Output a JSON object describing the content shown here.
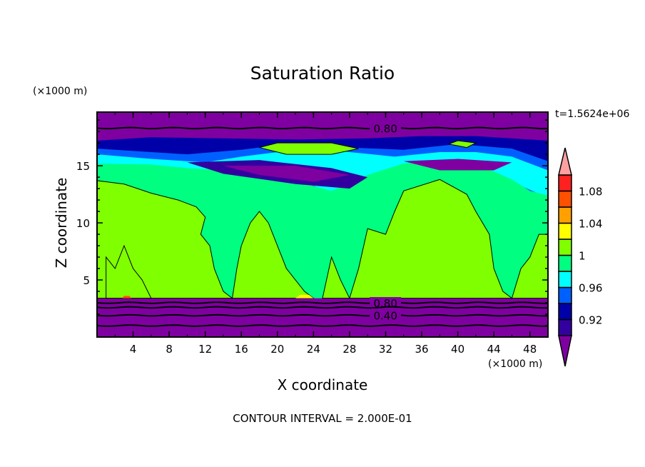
{
  "chart_data": {
    "type": "heatmap",
    "subtype": "filled-contour",
    "title": "Saturation Ratio",
    "xlabel": "X coordinate",
    "ylabel": "Z coordinate",
    "xunit": "(×1000 m)",
    "yunit": "(×1000 m)",
    "time_label": "t=1.5624e+06",
    "footer": "CONTOUR INTERVAL = 2.000E-01",
    "xlim": [
      0,
      50
    ],
    "ylim": [
      0,
      19.7
    ],
    "xticks": [
      4,
      8,
      12,
      16,
      20,
      24,
      28,
      32,
      36,
      40,
      44,
      48
    ],
    "yticks": [
      5,
      10,
      15
    ],
    "colorbar": {
      "levels": [
        0.9,
        0.92,
        0.94,
        0.96,
        0.98,
        1.0,
        1.02,
        1.04,
        1.06,
        1.08,
        1.1
      ],
      "tick_labels": [
        "0.92",
        "0.96",
        "1",
        "1.04",
        "1.08"
      ],
      "tick_values": [
        0.92,
        0.96,
        1.0,
        1.04,
        1.08
      ],
      "colors": [
        "#3300a0",
        "#0000a8",
        "#0060ff",
        "#00ffff",
        "#00ff80",
        "#80ff00",
        "#ffff00",
        "#ffa000",
        "#ff5000",
        "#ff2020"
      ],
      "under_color": "#7f00a0",
      "over_color": "#ffa0a0"
    },
    "regions": [
      {
        "level": 0.98,
        "color": "#0000a8",
        "points": [
          [
            0,
            14.4
          ],
          [
            0,
            17.2
          ],
          [
            6,
            17.5
          ],
          [
            14,
            17.4
          ],
          [
            22,
            17.3
          ],
          [
            30,
            17.4
          ],
          [
            36,
            17.6
          ],
          [
            42,
            17.6
          ],
          [
            50,
            17.2
          ],
          [
            50,
            10.6
          ],
          [
            48,
            12
          ],
          [
            46,
            13
          ],
          [
            44,
            13.5
          ],
          [
            40,
            14.3
          ],
          [
            36,
            14.5
          ],
          [
            34,
            14
          ],
          [
            30,
            12.6
          ],
          [
            28,
            11.4
          ],
          [
            25,
            12
          ],
          [
            23,
            13
          ],
          [
            20,
            13.8
          ],
          [
            14,
            14
          ],
          [
            8,
            14.2
          ]
        ]
      },
      {
        "level": 0.96,
        "color": "#0060ff",
        "points": [
          [
            0,
            14.8
          ],
          [
            0,
            16.5
          ],
          [
            4,
            16.3
          ],
          [
            10,
            16
          ],
          [
            16,
            16.4
          ],
          [
            20,
            16.8
          ],
          [
            28,
            16.6
          ],
          [
            34,
            16.4
          ],
          [
            40,
            16.9
          ],
          [
            46,
            16.5
          ],
          [
            50,
            15.4
          ],
          [
            50,
            11.5
          ],
          [
            46,
            13.4
          ],
          [
            40,
            14.8
          ],
          [
            34,
            15
          ],
          [
            30,
            13.2
          ],
          [
            27,
            12
          ],
          [
            25,
            12.4
          ],
          [
            22,
            13.6
          ],
          [
            18,
            14.3
          ],
          [
            10,
            14.4
          ],
          [
            4,
            14.7
          ]
        ]
      },
      {
        "level": 0.98,
        "color": "#00ffff",
        "points": [
          [
            0,
            15
          ],
          [
            0,
            16
          ],
          [
            6,
            15.6
          ],
          [
            12,
            15.3
          ],
          [
            16,
            15.8
          ],
          [
            20,
            16.2
          ],
          [
            24,
            16.6
          ],
          [
            28,
            16.2
          ],
          [
            33,
            15.8
          ],
          [
            38,
            16.2
          ],
          [
            42,
            16.2
          ],
          [
            46,
            15.8
          ],
          [
            50,
            14.6
          ],
          [
            50,
            12.2
          ],
          [
            46,
            13.6
          ],
          [
            40,
            15
          ],
          [
            34,
            15.2
          ],
          [
            30,
            13.8
          ],
          [
            26,
            12.6
          ],
          [
            22,
            13.9
          ],
          [
            18,
            14.5
          ],
          [
            10,
            14.6
          ],
          [
            4,
            14.9
          ]
        ]
      },
      {
        "level": 0.99,
        "color": "#00ff80",
        "points": [
          [
            0,
            3.4
          ],
          [
            0,
            15.2
          ],
          [
            6,
            15.1
          ],
          [
            10,
            14.8
          ],
          [
            14,
            14.6
          ],
          [
            18,
            14.6
          ],
          [
            22,
            14.2
          ],
          [
            24,
            13.2
          ],
          [
            26,
            12.8
          ],
          [
            28,
            13.4
          ],
          [
            30,
            14.2
          ],
          [
            34,
            15.2
          ],
          [
            38,
            15.4
          ],
          [
            42,
            15.2
          ],
          [
            46,
            13.8
          ],
          [
            48,
            12.8
          ],
          [
            50,
            12.4
          ],
          [
            50,
            3.4
          ]
        ]
      },
      {
        "level": 0.9,
        "color": "#3300a0",
        "points": [
          [
            10,
            15.3
          ],
          [
            18,
            15.5
          ],
          [
            26,
            14.8
          ],
          [
            30,
            14
          ],
          [
            28,
            13
          ],
          [
            22,
            13.4
          ],
          [
            14,
            14.3
          ]
        ]
      },
      {
        "level": 0.9,
        "color": "#7f00a0",
        "points": [
          [
            14,
            15
          ],
          [
            22,
            15
          ],
          [
            28,
            14.2
          ],
          [
            24,
            13.6
          ],
          [
            18,
            14.2
          ]
        ]
      },
      {
        "level": 0.9,
        "color": "#7f00a0",
        "points": [
          [
            34,
            15.4
          ],
          [
            40,
            15.6
          ],
          [
            46,
            15.3
          ],
          [
            44,
            14.6
          ],
          [
            38,
            14.6
          ]
        ]
      },
      {
        "level": 1.01,
        "color": "#80ff00",
        "points": [
          [
            0,
            3.4
          ],
          [
            0,
            13.7
          ],
          [
            3,
            13.4
          ],
          [
            6,
            12.6
          ],
          [
            9,
            12
          ],
          [
            11,
            11.4
          ],
          [
            12,
            10.5
          ],
          [
            11.5,
            9
          ],
          [
            12.5,
            8
          ],
          [
            13,
            6
          ],
          [
            14,
            4
          ],
          [
            15,
            3.4
          ]
        ]
      },
      {
        "level": 1.01,
        "color": "#80ff00",
        "points": [
          [
            1,
            3.4
          ],
          [
            1,
            7
          ],
          [
            2,
            6
          ],
          [
            3,
            8
          ],
          [
            4,
            6
          ],
          [
            5,
            5
          ],
          [
            6,
            3.4
          ]
        ]
      },
      {
        "level": 1.01,
        "color": "#80ff00",
        "points": [
          [
            15,
            3.4
          ],
          [
            15.5,
            6
          ],
          [
            16,
            8
          ],
          [
            17,
            10
          ],
          [
            18,
            11
          ],
          [
            19,
            10
          ],
          [
            20,
            8
          ],
          [
            21,
            6
          ],
          [
            22,
            5
          ],
          [
            23,
            4
          ],
          [
            24,
            3.4
          ]
        ]
      },
      {
        "level": 1.01,
        "color": "#80ff00",
        "points": [
          [
            25,
            3.4
          ],
          [
            26,
            7
          ],
          [
            27,
            5
          ],
          [
            28,
            3.4
          ]
        ]
      },
      {
        "level": 1.01,
        "color": "#80ff00",
        "points": [
          [
            28,
            3.4
          ],
          [
            29,
            6
          ],
          [
            30,
            9.5
          ],
          [
            32,
            9
          ],
          [
            33,
            11
          ],
          [
            34,
            12.8
          ],
          [
            38,
            13.8
          ],
          [
            41,
            12.5
          ],
          [
            42,
            11
          ],
          [
            43.5,
            9
          ],
          [
            44,
            6
          ],
          [
            45,
            4
          ],
          [
            46,
            3.4
          ]
        ]
      },
      {
        "level": 1.01,
        "color": "#80ff00",
        "points": [
          [
            46,
            3.4
          ],
          [
            47,
            6
          ],
          [
            48,
            7
          ],
          [
            49,
            9
          ],
          [
            50,
            9
          ],
          [
            50,
            3.4
          ]
        ]
      },
      {
        "level": 1.01,
        "color": "#80ff00",
        "points": [
          [
            18,
            16.6
          ],
          [
            20,
            17
          ],
          [
            26,
            17
          ],
          [
            29,
            16.5
          ],
          [
            26,
            16
          ],
          [
            21,
            16
          ]
        ]
      },
      {
        "level": 1.01,
        "color": "#80ff00",
        "points": [
          [
            39,
            16.9
          ],
          [
            40,
            17.2
          ],
          [
            42,
            17
          ],
          [
            41,
            16.6
          ]
        ]
      },
      {
        "level": 1.05,
        "color": "#ffff00",
        "points": [
          [
            22,
            3.4
          ],
          [
            22.5,
            3.7
          ],
          [
            23.5,
            3.7
          ],
          [
            24,
            3.4
          ]
        ]
      },
      {
        "level": 1.07,
        "color": "#ff5000",
        "points": [
          [
            2.8,
            3.4
          ],
          [
            3,
            3.6
          ],
          [
            3.6,
            3.6
          ],
          [
            3.8,
            3.4
          ]
        ]
      }
    ],
    "contour_lines": [
      {
        "value": "0.80",
        "z": 18.3,
        "label_x": 17.5
      },
      {
        "value": "0.80",
        "z": 3.0,
        "label_x": 17.5
      },
      {
        "value": "0.40",
        "z": 1.9,
        "label_x": 17.5
      },
      {
        "value": "",
        "z": 1.0,
        "label_x": null
      },
      {
        "value": "",
        "z": 2.6,
        "label_x": null
      }
    ]
  }
}
